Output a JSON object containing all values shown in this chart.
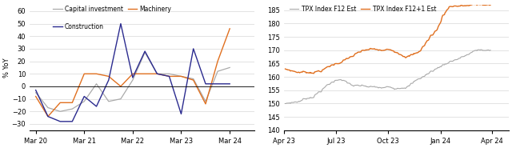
{
  "chart1": {
    "ylabel": "% YoY",
    "ylim": [
      -35,
      65
    ],
    "yticks": [
      -30,
      -20,
      -10,
      0,
      10,
      20,
      30,
      40,
      50,
      60
    ],
    "legend": [
      "Capital investment",
      "Machinery",
      "Construction"
    ],
    "colors": [
      "#aaaaaa",
      "#e07020",
      "#2b2b8f"
    ],
    "x_tick_labels": [
      "Mar 20",
      "Mar 21",
      "Mar 22",
      "Mar 23",
      "Mar 24"
    ],
    "cap_inv": [
      -5,
      -17,
      -20,
      -18,
      -12,
      2,
      -12,
      -10,
      5,
      27,
      10,
      10,
      8,
      6,
      -12,
      12,
      15
    ],
    "machinery": [
      -8,
      -24,
      -13,
      -13,
      10,
      10,
      8,
      0,
      10,
      10,
      10,
      8,
      8,
      5,
      -14,
      20,
      46
    ],
    "construction": [
      -3,
      -24,
      -28,
      -28,
      -8,
      -16,
      5,
      50,
      7,
      28,
      10,
      8,
      -22,
      30,
      2,
      2,
      2
    ]
  },
  "chart2": {
    "ylim": [
      140,
      187
    ],
    "yticks": [
      140,
      145,
      150,
      155,
      160,
      165,
      170,
      175,
      180,
      185
    ],
    "legend": [
      "TPX Index F12 Est",
      "TPX Index F12+1 Est"
    ],
    "colors": [
      "#aaaaaa",
      "#e07020"
    ],
    "x_tick_labels": [
      "Apr 23",
      "Jul 23",
      "Oct 23",
      "Jan 24",
      "Apr 24"
    ]
  }
}
